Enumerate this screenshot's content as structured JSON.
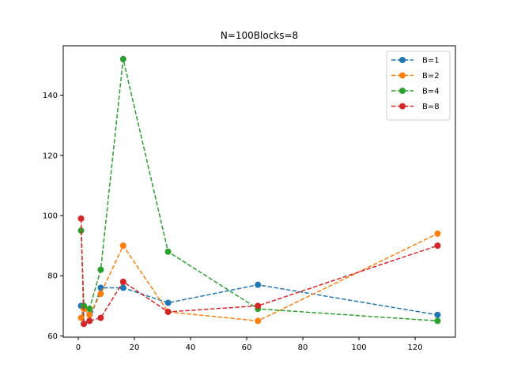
{
  "chart_data": {
    "type": "line",
    "title": "N=100Blocks=8",
    "xlabel": "",
    "ylabel": "",
    "xlim": [
      -5.35,
      134.35
    ],
    "ylim": [
      59.6,
      156.4
    ],
    "xticks": [
      0,
      20,
      40,
      60,
      80,
      100,
      120
    ],
    "yticks": [
      60,
      80,
      100,
      120,
      140
    ],
    "grid": false,
    "legend_position": "top-right",
    "line_style": "dashed",
    "marker": "circle",
    "series": [
      {
        "name": "B=1",
        "color": "#1f77b4",
        "x": [
          1,
          2,
          4,
          8,
          16,
          32,
          64,
          128
        ],
        "y": [
          70,
          64,
          65,
          76,
          76,
          71,
          77,
          67
        ]
      },
      {
        "name": "B=2",
        "color": "#ff7f0e",
        "x": [
          1,
          2,
          4,
          8,
          16,
          32,
          64,
          128
        ],
        "y": [
          66,
          69,
          67,
          74,
          90,
          68,
          65,
          94
        ]
      },
      {
        "name": "B=4",
        "color": "#2ca02c",
        "x": [
          1,
          2,
          4,
          8,
          16,
          32,
          64,
          128
        ],
        "y": [
          95,
          70,
          69,
          82,
          152,
          88,
          69,
          65
        ]
      },
      {
        "name": "B=8",
        "color": "#d62728",
        "x": [
          1,
          2,
          4,
          8,
          16,
          32,
          64,
          128
        ],
        "y": [
          99,
          64,
          65,
          66,
          78,
          68,
          70,
          90
        ]
      }
    ]
  }
}
